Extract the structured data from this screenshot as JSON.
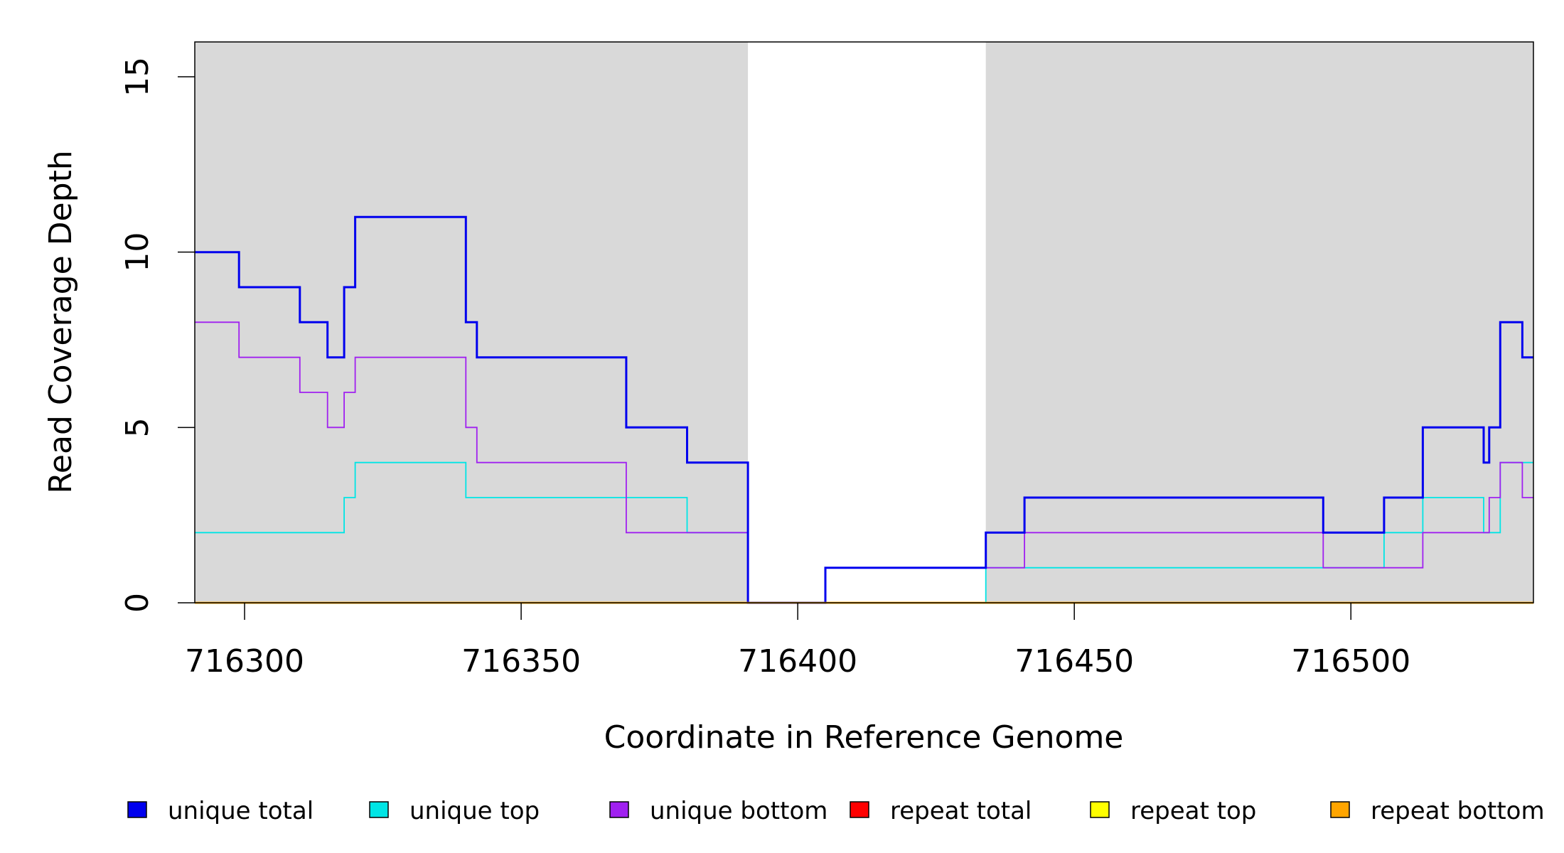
{
  "chart_data": {
    "type": "line",
    "step": true,
    "xlabel": "Coordinate in Reference Genome",
    "ylabel": "Read Coverage Depth",
    "xlim": [
      716291,
      716533
    ],
    "ylim": [
      0,
      16
    ],
    "xticks": [
      716300,
      716350,
      716400,
      716450,
      716500
    ],
    "yticks": [
      0,
      5,
      10,
      15
    ],
    "shaded_regions": [
      {
        "start": 716291,
        "end": 716391,
        "color": "#d9d9d9"
      },
      {
        "start": 716434,
        "end": 716533,
        "color": "#d9d9d9"
      }
    ],
    "legend_position": "bottom",
    "series": [
      {
        "name": "unique total",
        "color": "#0000ee",
        "points": [
          [
            716291,
            10
          ],
          [
            716299,
            9
          ],
          [
            716310,
            8
          ],
          [
            716315,
            7
          ],
          [
            716318,
            9
          ],
          [
            716320,
            11
          ],
          [
            716340,
            8
          ],
          [
            716342,
            7
          ],
          [
            716369,
            5
          ],
          [
            716380,
            4
          ],
          [
            716391,
            0
          ],
          [
            716405,
            1
          ],
          [
            716434,
            2
          ],
          [
            716441,
            3
          ],
          [
            716495,
            2
          ],
          [
            716506,
            3
          ],
          [
            716513,
            5
          ],
          [
            716524,
            4
          ],
          [
            716525,
            5
          ],
          [
            716527,
            8
          ],
          [
            716531,
            7
          ],
          [
            716533,
            7
          ]
        ]
      },
      {
        "name": "unique top",
        "color": "#00e5e5",
        "points": [
          [
            716291,
            2
          ],
          [
            716318,
            3
          ],
          [
            716320,
            4
          ],
          [
            716340,
            3
          ],
          [
            716380,
            2
          ],
          [
            716391,
            0
          ],
          [
            716434,
            1
          ],
          [
            716506,
            2
          ],
          [
            716513,
            3
          ],
          [
            716524,
            2
          ],
          [
            716527,
            4
          ],
          [
            716533,
            4
          ]
        ]
      },
      {
        "name": "unique bottom",
        "color": "#a020f0",
        "points": [
          [
            716291,
            8
          ],
          [
            716299,
            7
          ],
          [
            716310,
            6
          ],
          [
            716315,
            5
          ],
          [
            716318,
            6
          ],
          [
            716320,
            7
          ],
          [
            716340,
            5
          ],
          [
            716342,
            4
          ],
          [
            716369,
            2
          ],
          [
            716391,
            0
          ],
          [
            716405,
            1
          ],
          [
            716441,
            2
          ],
          [
            716495,
            1
          ],
          [
            716513,
            2
          ],
          [
            716525,
            3
          ],
          [
            716527,
            4
          ],
          [
            716531,
            3
          ],
          [
            716533,
            3
          ]
        ]
      },
      {
        "name": "repeat total",
        "color": "#ff0000",
        "points": [
          [
            716291,
            0
          ],
          [
            716533,
            0
          ]
        ]
      },
      {
        "name": "repeat top",
        "color": "#ffff00",
        "points": [
          [
            716291,
            0
          ],
          [
            716533,
            0
          ]
        ]
      },
      {
        "name": "repeat bottom",
        "color": "#ffa500",
        "points": [
          [
            716291,
            0
          ],
          [
            716533,
            0
          ]
        ]
      }
    ]
  }
}
